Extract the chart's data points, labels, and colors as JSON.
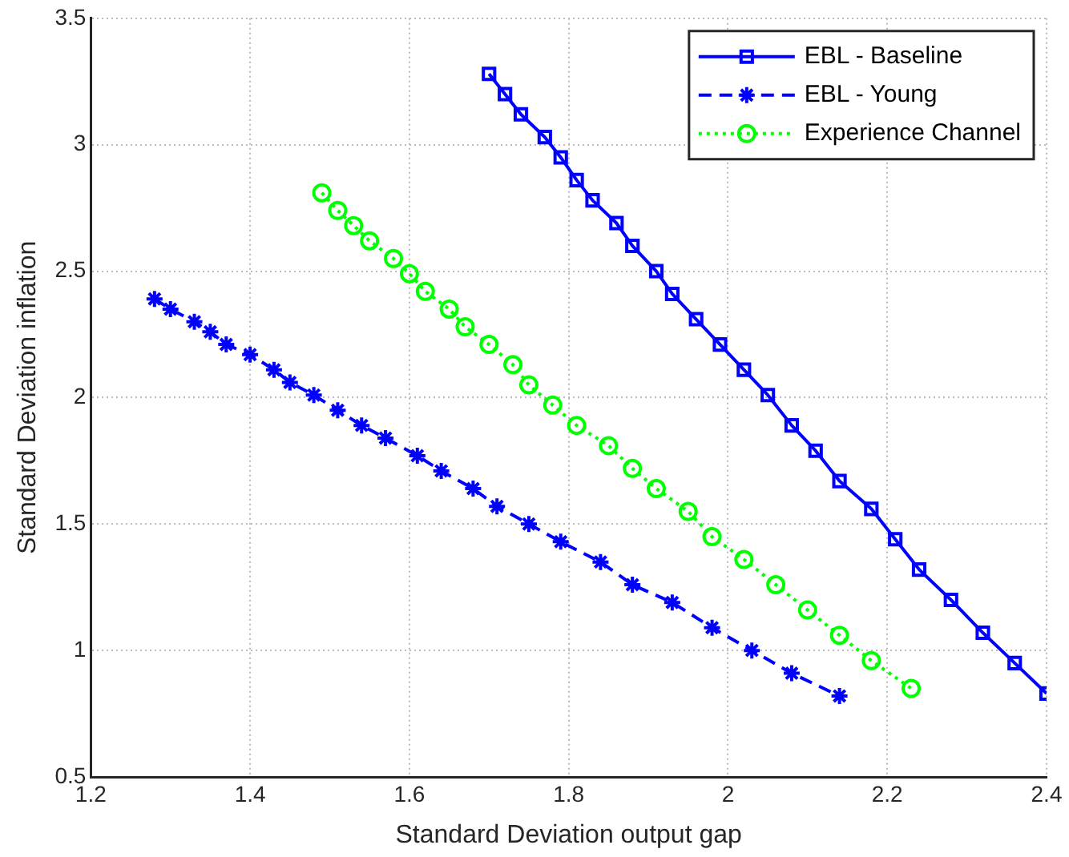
{
  "chart_data": {
    "type": "line",
    "xlabel": "Standard Deviation output gap",
    "ylabel": "Standard Deviation inflation",
    "xlim": [
      1.2,
      2.4
    ],
    "xticks": [
      1.2,
      1.4,
      1.6,
      1.8,
      2,
      2.2,
      2.4
    ],
    "ylim": [
      0.5,
      3.5
    ],
    "yticks": [
      0.5,
      1,
      1.5,
      2,
      2.5,
      3,
      3.5
    ],
    "grid": true,
    "legend": "top right",
    "series": [
      {
        "name": "EBL - Baseline",
        "color": "#0000ff",
        "marker": "square",
        "line_style": "solid",
        "x": [
          1.7,
          1.72,
          1.74,
          1.77,
          1.79,
          1.81,
          1.83,
          1.86,
          1.88,
          1.91,
          1.93,
          1.96,
          1.99,
          2.02,
          2.05,
          2.08,
          2.11,
          2.14,
          2.18,
          2.21,
          2.24,
          2.28,
          2.32,
          2.36,
          2.4
        ],
        "values": [
          3.28,
          3.2,
          3.12,
          3.03,
          2.95,
          2.86,
          2.78,
          2.69,
          2.6,
          2.5,
          2.41,
          2.31,
          2.21,
          2.11,
          2.01,
          1.89,
          1.79,
          1.67,
          1.56,
          1.44,
          1.32,
          1.2,
          1.07,
          0.95,
          0.83
        ]
      },
      {
        "name": "EBL - Young",
        "color": "#0000ff",
        "marker": "cross",
        "line_style": "dashed",
        "x": [
          1.28,
          1.3,
          1.33,
          1.35,
          1.37,
          1.4,
          1.43,
          1.45,
          1.48,
          1.51,
          1.54,
          1.57,
          1.61,
          1.64,
          1.68,
          1.71,
          1.75,
          1.79,
          1.84,
          1.88,
          1.93,
          1.98,
          2.03,
          2.08,
          2.14
        ],
        "values": [
          2.39,
          2.35,
          2.3,
          2.26,
          2.21,
          2.17,
          2.11,
          2.06,
          2.01,
          1.95,
          1.89,
          1.84,
          1.77,
          1.71,
          1.64,
          1.57,
          1.5,
          1.43,
          1.35,
          1.26,
          1.19,
          1.09,
          1.0,
          0.91,
          0.82
        ]
      },
      {
        "name": "Experience Channel",
        "color": "#00ff00",
        "marker": "circle",
        "line_style": "dotted",
        "x": [
          1.49,
          1.51,
          1.53,
          1.55,
          1.58,
          1.6,
          1.62,
          1.65,
          1.67,
          1.7,
          1.73,
          1.75,
          1.78,
          1.81,
          1.85,
          1.88,
          1.91,
          1.95,
          1.98,
          2.02,
          2.06,
          2.1,
          2.14,
          2.18,
          2.23
        ],
        "values": [
          2.81,
          2.74,
          2.68,
          2.62,
          2.55,
          2.49,
          2.42,
          2.35,
          2.28,
          2.21,
          2.13,
          2.05,
          1.97,
          1.89,
          1.81,
          1.72,
          1.64,
          1.55,
          1.45,
          1.36,
          1.26,
          1.16,
          1.06,
          0.96,
          0.85
        ]
      }
    ]
  }
}
